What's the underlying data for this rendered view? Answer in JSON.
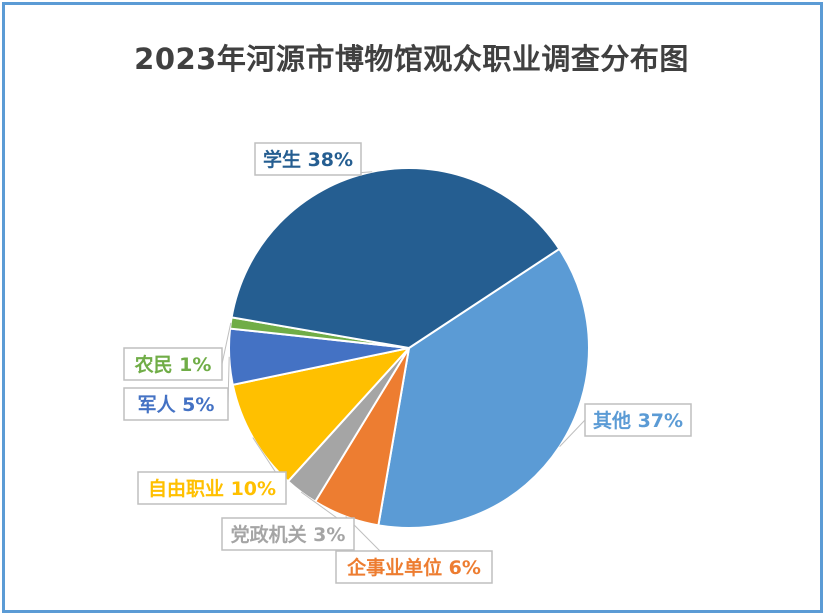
{
  "chart_data": {
    "type": "pie",
    "title": "2023年河源市博物馆观众职业调查分布图",
    "slices": [
      {
        "name": "其他",
        "value": 37,
        "label": "其他 37%",
        "color": "#5b9bd5"
      },
      {
        "name": "企事业单位",
        "value": 6,
        "label": "企事业单位 6%",
        "color": "#ed7d31"
      },
      {
        "name": "党政机关",
        "value": 3,
        "label": "党政机关 3%",
        "color": "#a5a5a5"
      },
      {
        "name": "自由职业",
        "value": 10,
        "label": "自由职业 10%",
        "color": "#ffc000"
      },
      {
        "name": "军人",
        "value": 5,
        "label": "军人 5%",
        "color": "#4472c4"
      },
      {
        "name": "农民",
        "value": 1,
        "label": "农民 1%",
        "color": "#70ad47"
      },
      {
        "name": "学生",
        "value": 38,
        "label": "学生 38%",
        "color": "#255e91"
      }
    ],
    "legend": "none",
    "data_labels": "outside-with-leader-lines"
  }
}
